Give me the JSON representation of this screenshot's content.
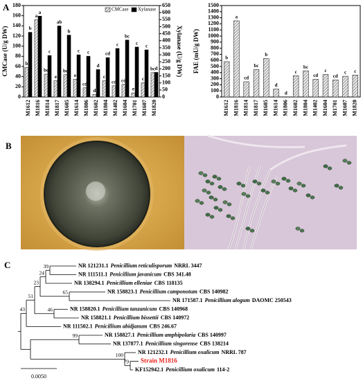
{
  "panel_labels": [
    "A",
    "B",
    "C"
  ],
  "chart_data": [
    {
      "type": "bar",
      "y_label": "CMCase (U/g DW)",
      "y2_label": "Xylanase (U/g DW)",
      "categories": [
        "M1612",
        "M1816",
        "M1814",
        "M1817",
        "M1605",
        "M1614",
        "M1806",
        "M1602",
        "M1804",
        "M1402",
        "M1604",
        "M1701",
        "M1607",
        "M1820"
      ],
      "ylim": [
        0,
        180
      ],
      "yticks": [
        0,
        20,
        40,
        60,
        80,
        100,
        120,
        140,
        160,
        180
      ],
      "y2lim": [
        0,
        650
      ],
      "y2ticks": [
        0,
        50,
        100,
        150,
        200,
        250,
        300,
        350,
        400,
        450,
        500,
        550,
        600,
        650
      ],
      "legend": "upper right",
      "series": [
        {
          "name": "CMCase",
          "color": "#cfcfcf",
          "values": [
            58,
            152,
            45,
            32,
            44,
            35,
            18,
            5,
            32,
            22,
            25,
            8,
            28,
            48
          ],
          "letters": [
            "b",
            "a",
            "bc",
            "e",
            "bc",
            "e",
            "cd",
            "d",
            "c",
            "cd",
            "cd",
            "e",
            "c",
            "bc"
          ]
        },
        {
          "name": "Xylanase",
          "color": "#000000",
          "axis": "y2",
          "values": [
            460,
            575,
            295,
            505,
            440,
            300,
            290,
            195,
            280,
            345,
            405,
            355,
            335,
            175
          ],
          "letters": [
            "b",
            "a",
            "c",
            "ab",
            "b",
            "c",
            "c",
            "d",
            "cd",
            "c",
            "bc",
            "c",
            "c",
            "d"
          ]
        }
      ]
    },
    {
      "type": "bar",
      "y_label": "FAE (mU/g DW)",
      "categories": [
        "M1612",
        "M1816",
        "M1814",
        "M1817",
        "M1605",
        "M1614",
        "M1806",
        "M1602",
        "M1804",
        "M1402",
        "M1604",
        "M1701",
        "M1607",
        "M1820"
      ],
      "ylim": [
        0,
        1500
      ],
      "yticks": [
        0,
        100,
        200,
        300,
        400,
        500,
        600,
        700,
        800,
        900,
        1000,
        1100,
        1200,
        1300,
        1400,
        1500
      ],
      "color": "#cfcfcf",
      "values": [
        580,
        1250,
        250,
        450,
        630,
        130,
        0,
        350,
        430,
        290,
        370,
        280,
        340,
        360
      ],
      "letters": [
        "b",
        "a",
        "cd",
        "bc",
        "b",
        "d",
        "d",
        "c",
        "bc",
        "cd",
        "c",
        "cd",
        "c",
        "c"
      ]
    }
  ],
  "tree": {
    "leaves": [
      {
        "accession": "NR 121231.1",
        "species": "Penicillium reticulisporum",
        "strain": "NRRL 3447"
      },
      {
        "accession": "NR 111511.1",
        "species": "Penicillium javanicum",
        "strain": "CBS 341.48"
      },
      {
        "accession": "NR 138294.1",
        "species": "Penicillium elleniae",
        "strain": "CBS 118135"
      },
      {
        "accession": "NR 158823.1",
        "species": "Penicillium camponotum",
        "strain": "CBS 140982"
      },
      {
        "accession": "NR 171587.1",
        "species": "Penicillium alogum",
        "strain": "DAOMC 250543"
      },
      {
        "accession": "NR 158820.1",
        "species": "Penicillium tanzanicum",
        "strain": "CBS 140968"
      },
      {
        "accession": "NR 158821.1",
        "species": "Penicillium bissettii",
        "strain": "CBS 140972"
      },
      {
        "accession": "NR 111502.1",
        "species": "Penicillium abidjanum",
        "strain": "CBS 246.67"
      },
      {
        "accession": "NR 158827.1",
        "species": "Penicillium amphipolaria",
        "strain": "CBS 140997"
      },
      {
        "accession": "NR 137877.1",
        "species": "Penicillium singorense",
        "strain": "CBS 138214"
      },
      {
        "accession": "NR 121232.1",
        "species": "Penicillium oxalicum",
        "strain": "NRRL 787"
      },
      {
        "label": "Strain M1816"
      },
      {
        "accession": "KF152942.1",
        "species": "Penicillium oxalicum",
        "strain": "114-2"
      }
    ],
    "bootstraps": [
      39,
      24,
      23,
      65,
      51,
      46,
      43,
      99,
      100,
      79
    ],
    "scale": "0.0050"
  }
}
